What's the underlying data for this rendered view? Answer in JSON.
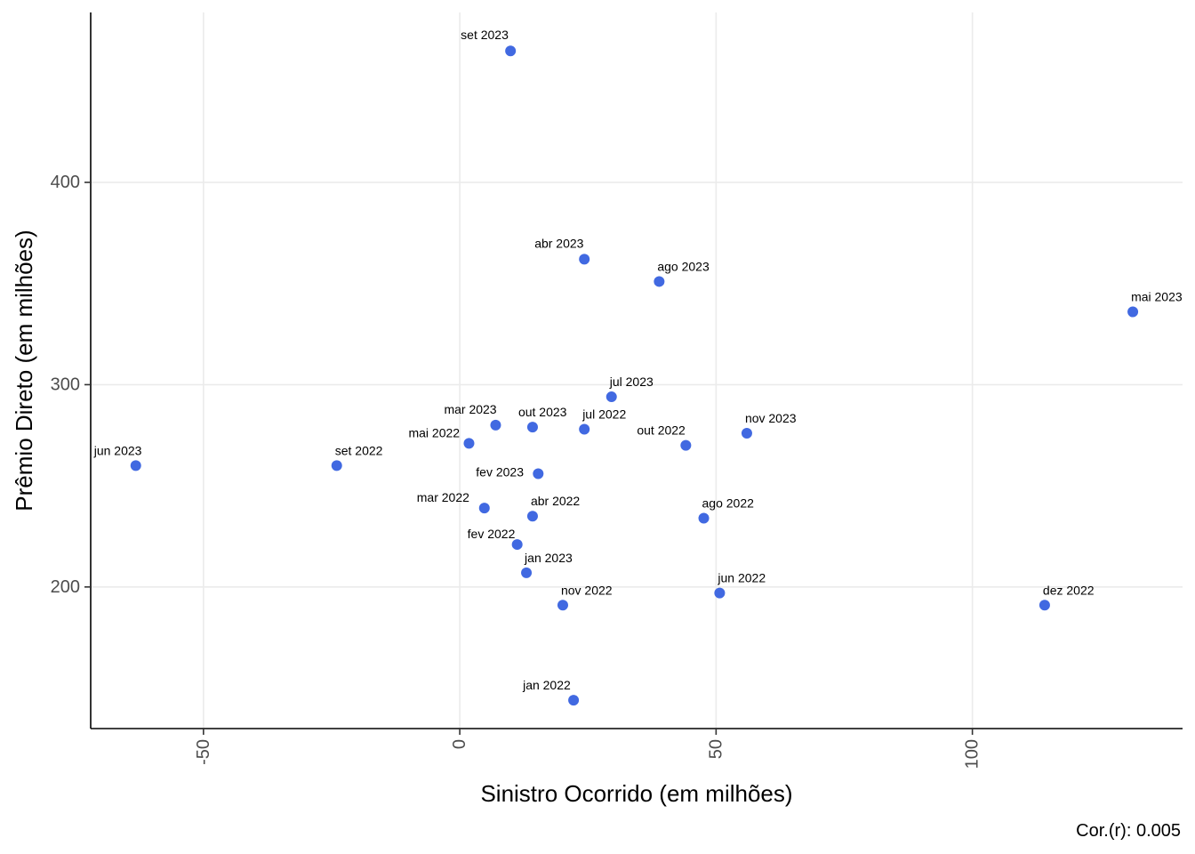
{
  "chart_data": {
    "type": "scatter",
    "xlabel": "Sinistro Ocorrido (em milhões)",
    "ylabel": "Prêmio Direto (em milhões)",
    "caption": "Cor.(r): 0.005",
    "xlim": [
      -72,
      141
    ],
    "ylim": [
      130,
      484
    ],
    "x_ticks": [
      -50,
      0,
      50,
      100
    ],
    "y_ticks": [
      200,
      300,
      400
    ],
    "grid": true,
    "point_color": "#4169E1",
    "points": [
      {
        "label": "jan 2022",
        "x": 22.2,
        "y": 144
      },
      {
        "label": "fev 2022",
        "x": 11.2,
        "y": 221
      },
      {
        "label": "mar 2022",
        "x": 4.8,
        "y": 239
      },
      {
        "label": "abr 2022",
        "x": 14.2,
        "y": 235
      },
      {
        "label": "mai 2022",
        "x": 1.8,
        "y": 271
      },
      {
        "label": "jun 2022",
        "x": 50.7,
        "y": 197
      },
      {
        "label": "jul 2022",
        "x": 24.3,
        "y": 278
      },
      {
        "label": "ago 2022",
        "x": 47.6,
        "y": 234
      },
      {
        "label": "set 2022",
        "x": -24.0,
        "y": 260
      },
      {
        "label": "out 2022",
        "x": 44.1,
        "y": 270
      },
      {
        "label": "nov 2022",
        "x": 20.1,
        "y": 191
      },
      {
        "label": "dez 2022",
        "x": 114.1,
        "y": 191
      },
      {
        "label": "jan 2023",
        "x": 13.0,
        "y": 207
      },
      {
        "label": "fev 2023",
        "x": 15.3,
        "y": 256
      },
      {
        "label": "mar 2023",
        "x": 7.0,
        "y": 280
      },
      {
        "label": "abr 2023",
        "x": 24.3,
        "y": 362
      },
      {
        "label": "mai 2023",
        "x": 131.3,
        "y": 336
      },
      {
        "label": "jun 2023",
        "x": -63.2,
        "y": 260
      },
      {
        "label": "jul 2023",
        "x": 29.6,
        "y": 294
      },
      {
        "label": "ago 2023",
        "x": 38.9,
        "y": 351
      },
      {
        "label": "set 2023",
        "x": 9.9,
        "y": 465
      },
      {
        "label": "out 2023",
        "x": 14.2,
        "y": 279
      },
      {
        "label": "nov 2023",
        "x": 56.0,
        "y": 276
      }
    ]
  }
}
